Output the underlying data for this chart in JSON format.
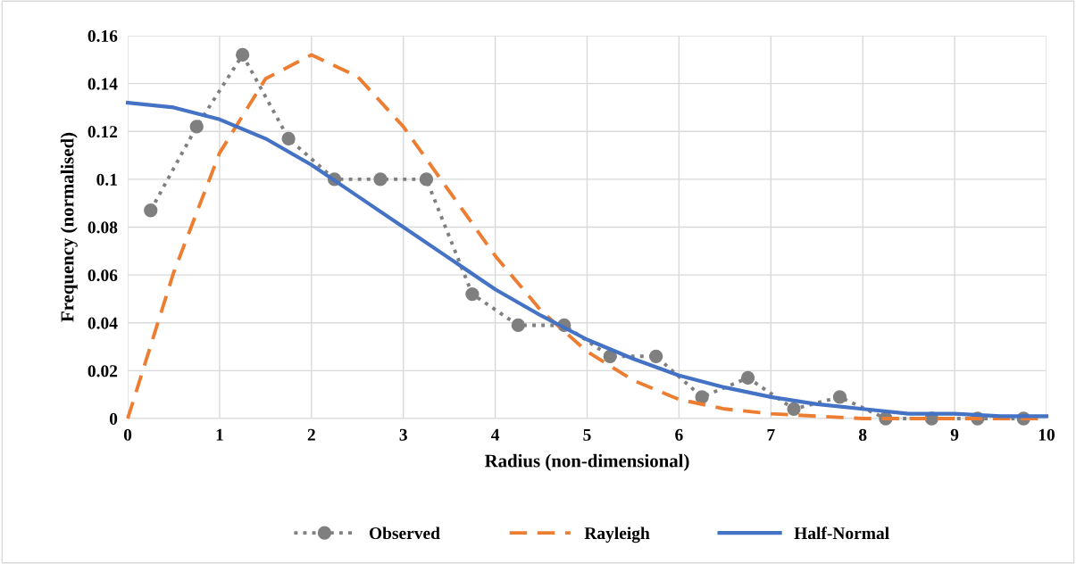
{
  "chart_data": {
    "type": "line",
    "xlabel": "Radius (non-dimensional)",
    "ylabel": "Frequency (normalised)",
    "xlim": [
      0,
      10
    ],
    "xticks": [
      0,
      1,
      2,
      3,
      4,
      5,
      6,
      7,
      8,
      9,
      10
    ],
    "ylim": [
      0,
      0.16
    ],
    "yticks": [
      0,
      0.02,
      0.04,
      0.06,
      0.08,
      0.1,
      0.12,
      0.14,
      0.16
    ],
    "grid": true,
    "legend": "bottom",
    "series": [
      {
        "name": "Observed",
        "color": "#7f7f7f",
        "marker": "circle",
        "line_style": "dotted",
        "x": [
          0.25,
          0.75,
          1.25,
          1.75,
          2.25,
          2.75,
          3.25,
          3.75,
          4.25,
          4.75,
          5.25,
          5.75,
          6.25,
          6.75,
          7.25,
          7.75,
          8.25,
          8.75,
          9.25,
          9.75
        ],
        "values": [
          0.087,
          0.122,
          0.152,
          0.117,
          0.1,
          0.1,
          0.1,
          0.052,
          0.039,
          0.039,
          0.026,
          0.026,
          0.009,
          0.017,
          0.004,
          0.009,
          0,
          0,
          0,
          0
        ]
      },
      {
        "name": "Rayleigh",
        "color": "#ed7d31",
        "marker": "none",
        "line_style": "dashed",
        "x": [
          0,
          0.5,
          1,
          1.5,
          2,
          2.5,
          3,
          3.5,
          4,
          4.5,
          5,
          5.5,
          6,
          6.5,
          7,
          7.5,
          8,
          9,
          10
        ],
        "values": [
          0,
          0.061,
          0.111,
          0.142,
          0.152,
          0.143,
          0.122,
          0.095,
          0.068,
          0.045,
          0.028,
          0.016,
          0.008,
          0.004,
          0.002,
          0.001,
          0,
          0,
          0
        ]
      },
      {
        "name": "Half-Normal",
        "color": "#4472c4",
        "marker": "none",
        "line_style": "solid",
        "x": [
          0,
          0.5,
          1,
          1.5,
          2,
          2.5,
          3,
          3.5,
          4,
          4.5,
          5,
          5.5,
          6,
          6.5,
          7,
          7.5,
          8,
          8.5,
          9,
          9.5,
          10
        ],
        "values": [
          0.132,
          0.13,
          0.125,
          0.117,
          0.106,
          0.093,
          0.08,
          0.067,
          0.054,
          0.043,
          0.033,
          0.025,
          0.018,
          0.013,
          0.009,
          0.006,
          0.004,
          0.002,
          0.002,
          0.001,
          0.001
        ]
      }
    ]
  }
}
